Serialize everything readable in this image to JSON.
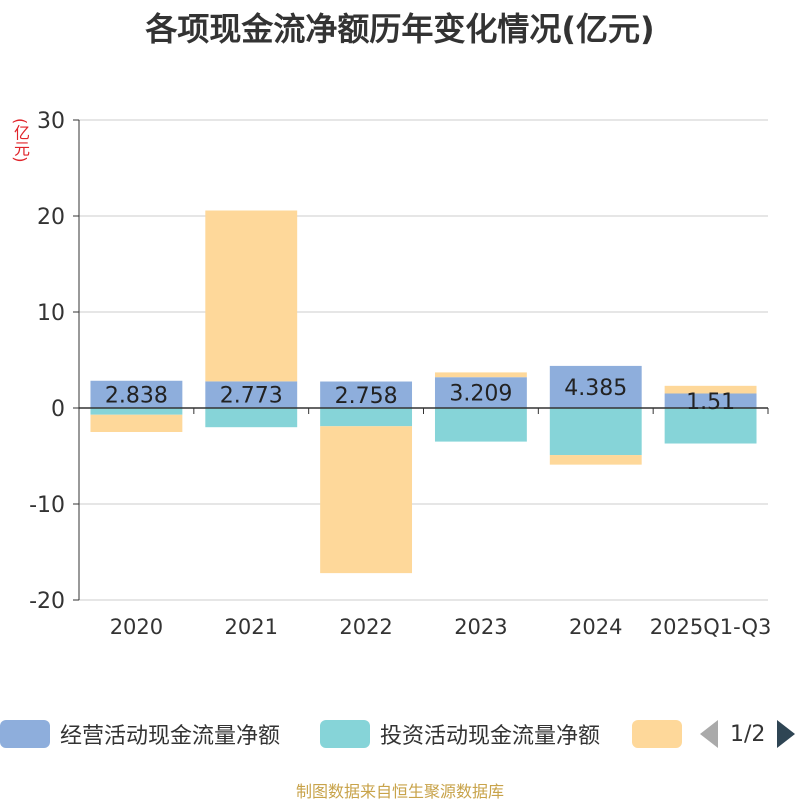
{
  "chart_data": {
    "type": "bar",
    "stacked": true,
    "title": "各项现金流净额历年变化情况(亿元)",
    "ylabel": "(亿元)",
    "ylim": [
      -20,
      30
    ],
    "yticks": [
      -20,
      -10,
      0,
      10,
      20,
      30
    ],
    "categories": [
      "2020",
      "2021",
      "2022",
      "2023",
      "2024",
      "2025Q1-Q3"
    ],
    "series": [
      {
        "name": "经营活动现金流量净额",
        "color": "#8eaedc",
        "values": [
          2.838,
          2.773,
          2.758,
          3.209,
          4.385,
          1.51
        ],
        "labels": [
          "2.838",
          "2.773",
          "2.758",
          "3.209",
          "4.385",
          "1.51"
        ]
      },
      {
        "name": "投资活动现金流量净额",
        "color": "#86d4d8",
        "values": [
          -0.7,
          -2.0,
          -1.9,
          -3.5,
          -4.9,
          -3.7
        ]
      },
      {
        "name": "",
        "color": "#fed89a",
        "values": [
          -1.8,
          17.8,
          -15.3,
          0.5,
          -1.0,
          0.8
        ]
      }
    ],
    "grid": true,
    "legend_position": "bottom"
  },
  "legend": {
    "items": [
      {
        "label": "经营活动现金流量净额",
        "color": "#8eaedc"
      },
      {
        "label": "投资活动现金流量净额",
        "color": "#86d4d8"
      },
      {
        "label": "",
        "color": "#fed89a"
      }
    ],
    "page": "1/2"
  },
  "source_text": "制图数据来自恒生聚源数据库"
}
